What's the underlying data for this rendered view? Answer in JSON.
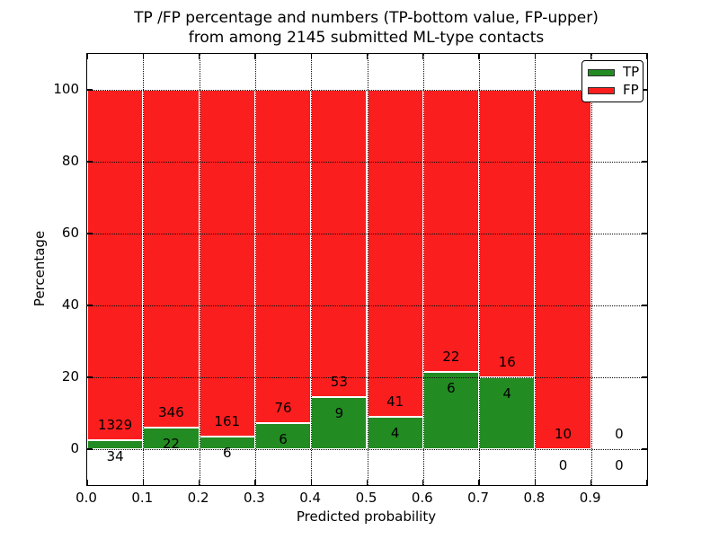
{
  "figure": {
    "background": "#ffffff",
    "spine_color": "#000000"
  },
  "chart_data": {
    "type": "bar",
    "stacked": true,
    "normalized": "percent",
    "title_line1": "TP /FP percentage and numbers (TP-bottom value, FP-upper)",
    "title_line2": "from among 2145 submitted ML-type contacts",
    "xlabel": "Predicted probability",
    "ylabel": "Percentage",
    "total_contacts": 2145,
    "bin_width": 0.1,
    "bin_starts": [
      0.0,
      0.1,
      0.2,
      0.3,
      0.4,
      0.5,
      0.6,
      0.7,
      0.8,
      0.9
    ],
    "xtick_labels": [
      "0.0",
      "0.1",
      "0.2",
      "0.3",
      "0.4",
      "0.5",
      "0.6",
      "0.7",
      "0.8",
      "0.9"
    ],
    "yticks": [
      0,
      20,
      40,
      60,
      80,
      100
    ],
    "ylim": [
      -10,
      110
    ],
    "xlim": [
      0.0,
      1.0
    ],
    "grid": "dotted",
    "grid_on_top": true,
    "legend_position": "upper right",
    "series": [
      {
        "name": "TP",
        "color": "#228b22",
        "counts": [
          34,
          22,
          6,
          6,
          9,
          4,
          6,
          4,
          0,
          0
        ]
      },
      {
        "name": "FP",
        "color": "#fb1e1e",
        "counts": [
          1329,
          346,
          161,
          76,
          53,
          41,
          22,
          16,
          10,
          0
        ]
      }
    ],
    "tp_percent": [
      2.49,
      5.98,
      3.59,
      7.32,
      14.52,
      8.89,
      21.43,
      20.0,
      0.0,
      null
    ],
    "bar_edge_color": "#ffffff"
  }
}
